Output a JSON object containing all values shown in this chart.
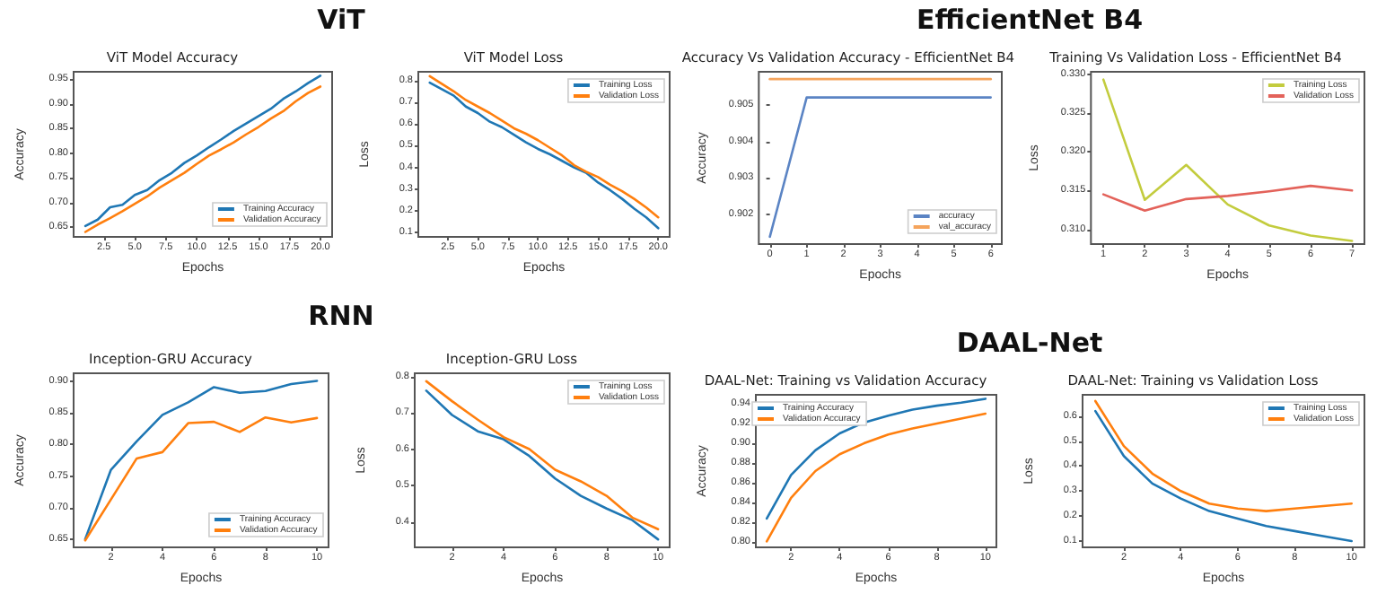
{
  "chart_data": [
    {
      "type": "other",
      "title": "ViT"
    },
    {
      "type": "line",
      "title": "ViT Model Accuracy",
      "xlabel": "Epochs",
      "ylabel": "Accuracy",
      "x": [
        1,
        2,
        3,
        4,
        5,
        6,
        7,
        8,
        9,
        10,
        11,
        12,
        13,
        14,
        15,
        16,
        17,
        18,
        19,
        20
      ],
      "xlim": [
        0.05,
        20.95
      ],
      "xticks": [
        {
          "value": 2.5,
          "label": "2.5"
        },
        {
          "value": 5,
          "label": "5.0"
        },
        {
          "value": 7.5,
          "label": "7.5"
        },
        {
          "value": 10,
          "label": "10.0"
        },
        {
          "value": 12.5,
          "label": "12.5"
        },
        {
          "value": 15,
          "label": "15.0"
        },
        {
          "value": 17.5,
          "label": "17.5"
        },
        {
          "value": 20,
          "label": "20.0"
        }
      ],
      "ylim": [
        0.63,
        0.965
      ],
      "yticks": [
        0.65,
        {
          "value": 0.7,
          "label": "0.70"
        },
        0.75,
        {
          "value": 0.8,
          "label": "0.80"
        },
        0.85,
        {
          "value": 0.9,
          "label": "0.90"
        },
        0.95
      ],
      "series": [
        {
          "name": "Training Accuracy",
          "color": "#1f77b4",
          "values": [
            0.652,
            0.665,
            0.69,
            0.695,
            0.715,
            0.725,
            0.745,
            0.76,
            0.78,
            0.795,
            0.812,
            0.828,
            0.845,
            0.86,
            0.875,
            0.89,
            0.91,
            0.925,
            0.942,
            0.957
          ]
        },
        {
          "name": "Validation Accuracy",
          "color": "#ff7f0e",
          "values": [
            0.64,
            0.655,
            0.668,
            0.682,
            0.697,
            0.712,
            0.73,
            0.745,
            0.76,
            0.778,
            0.795,
            0.808,
            0.822,
            0.838,
            0.853,
            0.87,
            0.885,
            0.905,
            0.922,
            0.935
          ]
        }
      ],
      "legend": "bottom right",
      "grid": false,
      "marker": "none"
    },
    {
      "type": "line",
      "title": "ViT Model Loss",
      "xlabel": "Epochs",
      "ylabel": "Loss",
      "x": [
        1,
        2,
        3,
        4,
        5,
        6,
        7,
        8,
        9,
        10,
        11,
        12,
        13,
        14,
        15,
        16,
        17,
        18,
        19,
        20
      ],
      "xlim": [
        0.05,
        20.95
      ],
      "xticks": [
        {
          "value": 2.5,
          "label": "2.5"
        },
        {
          "value": 5,
          "label": "5.0"
        },
        {
          "value": 7.5,
          "label": "7.5"
        },
        {
          "value": 10,
          "label": "10.0"
        },
        {
          "value": 12.5,
          "label": "12.5"
        },
        {
          "value": 15,
          "label": "15.0"
        },
        {
          "value": 17.5,
          "label": "17.5"
        },
        {
          "value": 20,
          "label": "20.0"
        }
      ],
      "ylim": [
        0.08,
        0.84
      ],
      "yticks": [
        0.1,
        0.2,
        0.3,
        0.4,
        0.5,
        0.6,
        0.7,
        0.8
      ],
      "series": [
        {
          "name": "Training Loss",
          "color": "#1f77b4",
          "values": [
            0.79,
            0.76,
            0.73,
            0.68,
            0.65,
            0.61,
            0.585,
            0.55,
            0.515,
            0.485,
            0.46,
            0.43,
            0.4,
            0.375,
            0.33,
            0.295,
            0.255,
            0.21,
            0.17,
            0.12
          ]
        },
        {
          "name": "Validation Loss",
          "color": "#ff7f0e",
          "values": [
            0.82,
            0.785,
            0.75,
            0.71,
            0.68,
            0.65,
            0.615,
            0.58,
            0.555,
            0.525,
            0.49,
            0.455,
            0.41,
            0.38,
            0.355,
            0.32,
            0.29,
            0.255,
            0.215,
            0.17
          ]
        }
      ],
      "legend": "top right",
      "grid": false,
      "marker": "none"
    },
    {
      "type": "other",
      "title": "EfficientNet B4"
    },
    {
      "type": "line",
      "title": "Accuracy Vs Validation Accuracy - EfficientNet B4",
      "xlabel": "Epochs",
      "ylabel": "Accuracy",
      "x": [
        0,
        1,
        2,
        3,
        4,
        5,
        6
      ],
      "xlim": [
        -0.3,
        6.3
      ],
      "xticks": [
        0,
        1,
        2,
        3,
        4,
        5,
        6
      ],
      "ylim": [
        0.9012,
        0.9059
      ],
      "yticks": [
        0.902,
        0.903,
        0.904,
        0.905
      ],
      "series": [
        {
          "name": "accuracy",
          "color": "#5b84c4",
          "values": [
            0.9014,
            0.9052,
            0.9052,
            0.9052,
            0.9052,
            0.9052,
            0.9052
          ]
        },
        {
          "name": "val_accuracy",
          "color": "#f5a45c",
          "values": [
            0.9057,
            0.9057,
            0.9057,
            0.9057,
            0.9057,
            0.9057,
            0.9057
          ]
        }
      ],
      "legend": "bottom right",
      "grid": false,
      "marker": "none"
    },
    {
      "type": "line",
      "title": "Training Vs Validation Loss - EfficientNet B4",
      "xlabel": "Epochs",
      "ylabel": "Loss",
      "x": [
        1,
        2,
        3,
        4,
        5,
        6,
        7
      ],
      "xlim": [
        0.7,
        7.3
      ],
      "xticks": [
        1,
        2,
        3,
        4,
        5,
        6,
        7
      ],
      "ylim": [
        0.3081,
        0.3303
      ],
      "yticks": [
        {
          "value": 0.31,
          "label": "0.310"
        },
        {
          "value": 0.315,
          "label": "0.315"
        },
        {
          "value": 0.32,
          "label": "0.320"
        },
        {
          "value": 0.325,
          "label": "0.325"
        },
        {
          "value": 0.33,
          "label": "0.330"
        }
      ],
      "series": [
        {
          "name": "Training Loss",
          "color": "#c3cc3e",
          "values": [
            0.3293,
            0.3138,
            0.3183,
            0.3132,
            0.3105,
            0.3092,
            0.3085
          ]
        },
        {
          "name": "Validation Loss",
          "color": "#e3625a",
          "values": [
            0.3145,
            0.3124,
            0.3139,
            0.3143,
            0.3149,
            0.3156,
            0.315
          ]
        }
      ],
      "legend": "top right",
      "grid": false,
      "marker": "none"
    },
    {
      "type": "other",
      "title": "RNN"
    },
    {
      "type": "line",
      "title": "Inception-GRU Accuracy",
      "xlabel": "Epochs",
      "ylabel": "Accuracy",
      "x": [
        1,
        2,
        3,
        4,
        5,
        6,
        7,
        8,
        9,
        10
      ],
      "xlim": [
        0.55,
        10.45
      ],
      "xticks": [
        2,
        4,
        6,
        8,
        10
      ],
      "ylim": [
        0.637,
        0.913
      ],
      "yticks": [
        0.65,
        {
          "value": 0.7,
          "label": "0.70"
        },
        0.75,
        {
          "value": 0.8,
          "label": "0.80"
        },
        0.85,
        {
          "value": 0.9,
          "label": "0.90"
        }
      ],
      "series": [
        {
          "name": "Training Accuracy",
          "color": "#1f77b4",
          "values": [
            0.65,
            0.76,
            0.805,
            0.847,
            0.867,
            0.891,
            0.882,
            0.885,
            0.896,
            0.901
          ]
        },
        {
          "name": "Validation Accuracy",
          "color": "#ff7f0e",
          "values": [
            0.648,
            0.713,
            0.778,
            0.788,
            0.834,
            0.836,
            0.82,
            0.843,
            0.835,
            0.842
          ]
        }
      ],
      "legend": "bottom right",
      "grid": false,
      "marker": "none"
    },
    {
      "type": "line",
      "title": "Inception-GRU Loss",
      "xlabel": "Epochs",
      "ylabel": "Loss",
      "x": [
        1,
        2,
        3,
        4,
        5,
        6,
        7,
        8,
        9,
        10
      ],
      "xlim": [
        0.55,
        10.45
      ],
      "xticks": [
        2,
        4,
        6,
        8,
        10
      ],
      "ylim": [
        0.33,
        0.81
      ],
      "yticks": [
        0.4,
        0.5,
        0.6,
        0.7,
        0.8
      ],
      "series": [
        {
          "name": "Training Loss",
          "color": "#1f77b4",
          "values": [
            0.762,
            0.695,
            0.65,
            0.628,
            0.582,
            0.52,
            0.472,
            0.437,
            0.405,
            0.352
          ]
        },
        {
          "name": "Validation Loss",
          "color": "#ff7f0e",
          "values": [
            0.788,
            0.733,
            0.682,
            0.634,
            0.601,
            0.544,
            0.512,
            0.472,
            0.412,
            0.38
          ]
        }
      ],
      "legend": "top right",
      "grid": false,
      "marker": "none"
    },
    {
      "type": "other",
      "title": "DAAL-Net"
    },
    {
      "type": "line",
      "title": "DAAL-Net: Training vs Validation Accuracy",
      "xlabel": "Epochs",
      "ylabel": "Accuracy",
      "x": [
        1,
        2,
        3,
        4,
        5,
        6,
        7,
        8,
        9,
        10
      ],
      "xlim": [
        0.55,
        10.45
      ],
      "xticks": [
        2,
        4,
        6,
        8,
        10
      ],
      "ylim": [
        0.795,
        0.949
      ],
      "yticks": [
        {
          "value": 0.8,
          "label": "0.80"
        },
        0.82,
        0.84,
        0.86,
        0.88,
        {
          "value": 0.9,
          "label": "0.90"
        },
        0.92,
        0.94
      ],
      "series": [
        {
          "name": "Training Accuracy",
          "color": "#1f77b4",
          "values": [
            0.824,
            0.868,
            0.893,
            0.91,
            0.921,
            0.928,
            0.934,
            0.938,
            0.941,
            0.945
          ]
        },
        {
          "name": "Validation Accuracy",
          "color": "#ff7f0e",
          "values": [
            0.801,
            0.845,
            0.872,
            0.889,
            0.9,
            0.909,
            0.915,
            0.92,
            0.925,
            0.93
          ]
        }
      ],
      "legend": "top left",
      "grid": false,
      "marker": "none"
    },
    {
      "type": "line",
      "title": "DAAL-Net: Training vs Validation Loss",
      "xlabel": "Epochs",
      "ylabel": "Loss",
      "x": [
        1,
        2,
        3,
        4,
        5,
        6,
        7,
        8,
        9,
        10
      ],
      "xlim": [
        0.55,
        10.45
      ],
      "xticks": [
        2,
        4,
        6,
        8,
        10
      ],
      "ylim": [
        0.075,
        0.685
      ],
      "yticks": [
        0.1,
        0.2,
        0.3,
        0.4,
        0.5,
        0.6
      ],
      "series": [
        {
          "name": "Training Loss",
          "color": "#1f77b4",
          "values": [
            0.62,
            0.44,
            0.33,
            0.27,
            0.22,
            0.19,
            0.16,
            0.14,
            0.12,
            0.1
          ]
        },
        {
          "name": "Validation Loss",
          "color": "#ff7f0e",
          "values": [
            0.66,
            0.48,
            0.37,
            0.3,
            0.25,
            0.23,
            0.22,
            0.23,
            0.24,
            0.25
          ]
        }
      ],
      "legend": "top right",
      "grid": false,
      "marker": "none"
    }
  ]
}
